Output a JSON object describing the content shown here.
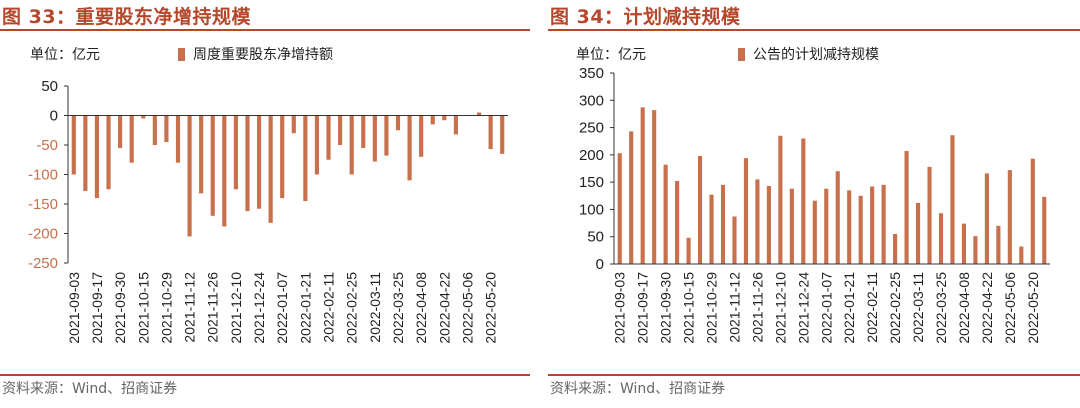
{
  "colors": {
    "accent": "#b5482c",
    "bar": "#c8704c",
    "axis": "#333333"
  },
  "left_panel": {
    "title": "图 33：重要股东净增持规模",
    "unit": "单位：亿元",
    "legend_label": "周度重要股东净增持额",
    "source": "资料来源：Wind、招商证券"
  },
  "right_panel": {
    "title": "图 34：计划减持规模",
    "unit": "单位：亿元",
    "legend_label": "公告的计划减持规模",
    "source": "资料来源：Wind、招商证券"
  },
  "chart_data": [
    {
      "type": "bar",
      "title": "图 33：重要股东净增持规模",
      "ylabel": "单位：亿元",
      "ylim": [
        -250,
        50
      ],
      "yticks": [
        50,
        0,
        -50,
        -100,
        -150,
        -200,
        -250
      ],
      "x_tick_labels": [
        "2021-09-03",
        "2021-09-17",
        "2021-09-30",
        "2021-10-15",
        "2021-10-29",
        "2021-11-12",
        "2021-11-26",
        "2021-12-10",
        "2021-12-24",
        "2022-01-07",
        "2022-01-21",
        "2022-02-11",
        "2022-02-25",
        "2022-03-11",
        "2022-03-25",
        "2022-04-08",
        "2022-04-22",
        "2022-05-06",
        "2022-05-20"
      ],
      "legend": "top",
      "series": [
        {
          "name": "周度重要股东净增持额",
          "values": [
            -100,
            -128,
            -140,
            -125,
            -55,
            -80,
            -5,
            -50,
            -45,
            -80,
            -205,
            -132,
            -170,
            -188,
            -125,
            -162,
            -158,
            -182,
            -140,
            -30,
            -145,
            -100,
            -75,
            -50,
            -100,
            -55,
            -78,
            -68,
            -25,
            -110,
            -70,
            -15,
            -8,
            -32,
            0,
            5,
            -57,
            -65
          ]
        }
      ]
    },
    {
      "type": "bar",
      "title": "图 34：计划减持规模",
      "ylabel": "单位：亿元",
      "ylim": [
        0,
        350
      ],
      "yticks": [
        350,
        300,
        250,
        200,
        150,
        100,
        50,
        0
      ],
      "x_tick_labels": [
        "2021-09-03",
        "2021-09-17",
        "2021-09-30",
        "2021-10-15",
        "2021-10-29",
        "2021-11-12",
        "2021-11-26",
        "2021-12-10",
        "2021-12-24",
        "2022-01-07",
        "2022-01-21",
        "2022-02-11",
        "2022-02-25",
        "2022-03-11",
        "2022-03-25",
        "2022-04-08",
        "2022-04-22",
        "2022-05-06",
        "2022-05-20"
      ],
      "legend": "top",
      "series": [
        {
          "name": "公告的计划减持规模",
          "values": [
            203,
            243,
            287,
            282,
            182,
            152,
            48,
            198,
            127,
            145,
            87,
            194,
            155,
            143,
            235,
            138,
            230,
            116,
            138,
            170,
            135,
            125,
            142,
            145,
            55,
            207,
            112,
            178,
            93,
            236,
            74,
            51,
            166,
            70,
            172,
            32,
            193,
            123
          ]
        }
      ]
    }
  ]
}
